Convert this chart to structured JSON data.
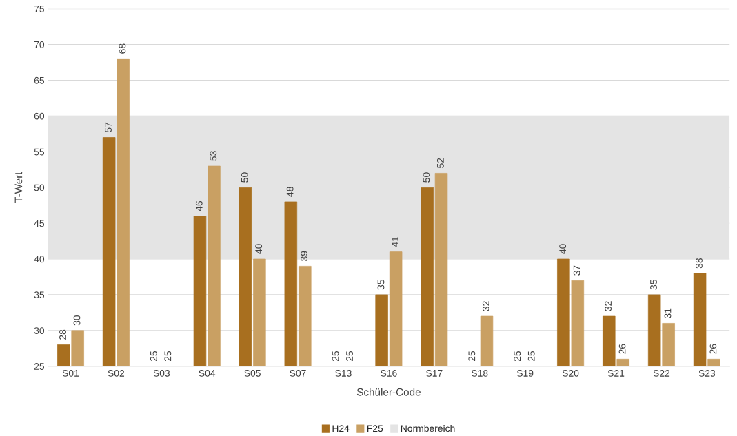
{
  "chart_data": {
    "type": "bar",
    "xlabel": "Schüler-Code",
    "ylabel": "T-Wert",
    "categories": [
      "S01",
      "S02",
      "S03",
      "S04",
      "S05",
      "S07",
      "S13",
      "S16",
      "S17",
      "S18",
      "S19",
      "S20",
      "S21",
      "S22",
      "S23"
    ],
    "series": [
      {
        "name": "H24",
        "color": "#a86f1f",
        "values": [
          28,
          57,
          25,
          46,
          50,
          48,
          25,
          35,
          50,
          25,
          25,
          40,
          32,
          35,
          38
        ]
      },
      {
        "name": "F25",
        "color": "#c9a063",
        "values": [
          30,
          68,
          25,
          53,
          40,
          39,
          25,
          41,
          52,
          32,
          25,
          37,
          26,
          31,
          26
        ]
      }
    ],
    "bands": [
      {
        "axis": "y",
        "from": 40,
        "to": 60,
        "label": "Normbereich",
        "color": "#e4e4e4"
      }
    ],
    "ylim": [
      25,
      75
    ],
    "yticks": [
      25,
      30,
      35,
      40,
      45,
      50,
      55,
      60,
      65,
      70,
      75
    ],
    "grid": "y",
    "legend": "bottom",
    "data_labels": true
  }
}
